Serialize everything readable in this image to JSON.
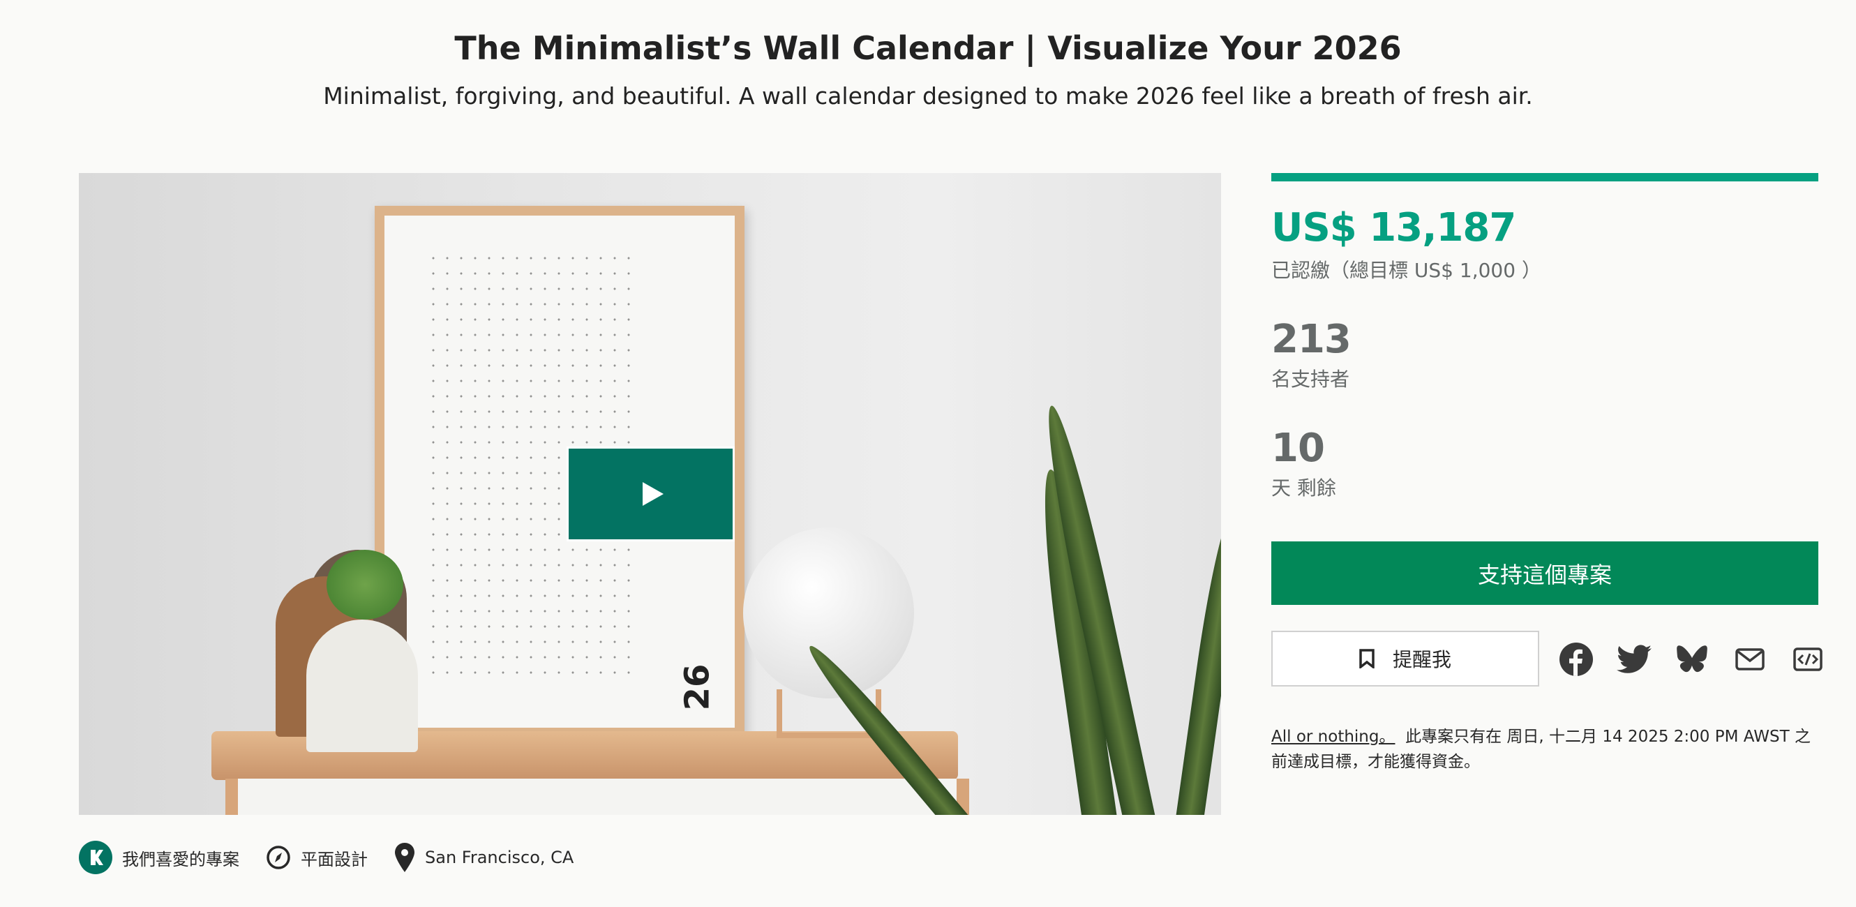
{
  "header": {
    "title": "The Minimalist’s Wall Calendar | Visualize Your 2026",
    "subtitle": "Minimalist, forgiving, and beautiful. A wall calendar designed to make 2026 feel like a breath of fresh air."
  },
  "media": {
    "play_icon": "play-icon",
    "poster_text": "26"
  },
  "stats": {
    "funded_percent": 100,
    "pledged": "US$ 13,187",
    "pledged_label": "已認繳（總目標 US$ 1,000 ）",
    "backers": "213",
    "backers_label": "名支持者",
    "days": "10",
    "days_label": "天 剩餘"
  },
  "actions": {
    "back_label": "支持這個專案",
    "remind_label": "提醒我",
    "share_icons": [
      "facebook-icon",
      "twitter-icon",
      "bluesky-icon",
      "email-icon",
      "embed-icon"
    ]
  },
  "note": {
    "link": "All or nothing。",
    "text": "此專案只有在 周日, 十二月 14 2025 2:00 PM AWST 之前達成目標，才能獲得資金。"
  },
  "tags": {
    "pwl": "我們喜愛的專案",
    "category": "平面設計",
    "location": "San Francisco, CA"
  },
  "colors": {
    "accent": "#05a081",
    "button": "#028858",
    "play": "#037362"
  }
}
